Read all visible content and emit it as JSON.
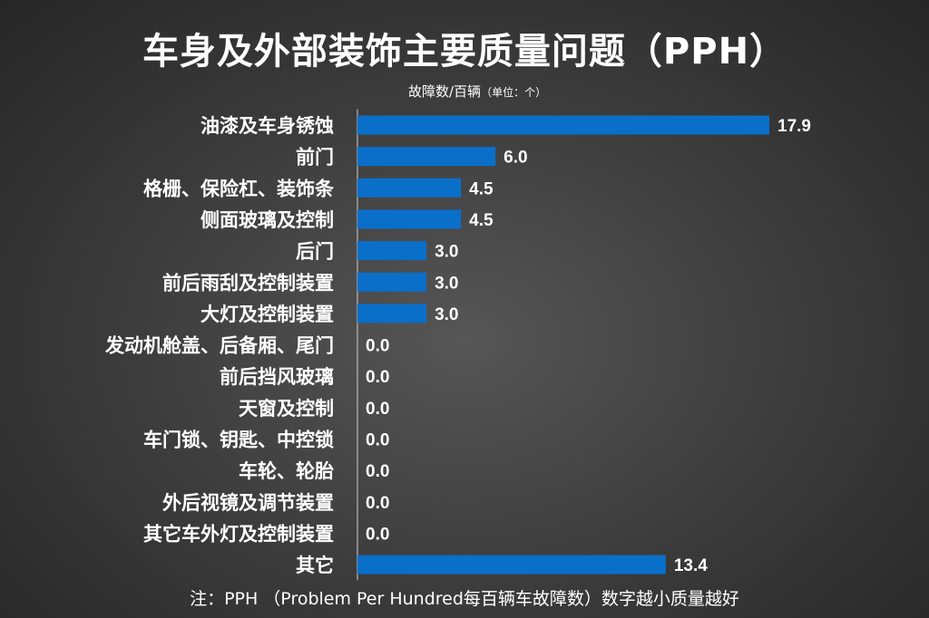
{
  "chart_data": {
    "type": "bar",
    "orientation": "horizontal",
    "title": "车身及外部装饰主要质量问题（PPH）",
    "unit_main": "故障数/百辆",
    "unit_paren": "（单位：个）",
    "categories": [
      "油漆及车身锈蚀",
      "前门",
      "格栅、保险杠、装饰条",
      "侧面玻璃及控制",
      "后门",
      "前后雨刮及控制装置",
      "大灯及控制装置",
      "发动机舱盖、后备厢、尾门",
      "前后挡风玻璃",
      "天窗及控制",
      "车门锁、钥匙、中控锁",
      "车轮、轮胎",
      "外后视镜及调节装置",
      "其它车外灯及控制装置",
      "其它"
    ],
    "values": [
      17.9,
      6.0,
      4.5,
      4.5,
      3.0,
      3.0,
      3.0,
      0.0,
      0.0,
      0.0,
      0.0,
      0.0,
      0.0,
      0.0,
      13.4
    ],
    "value_labels": [
      "17.9",
      "6.0",
      "4.5",
      "4.5",
      "3.0",
      "3.0",
      "3.0",
      "0.0",
      "0.0",
      "0.0",
      "0.0",
      "0.0",
      "0.0",
      "0.0",
      "13.4"
    ],
    "bar_color": "#0a6fc9",
    "xlim": [
      0,
      17.9
    ]
  },
  "footnote": "注：PPH （Problem Per Hundred每百辆车故障数）数字越小质量越好"
}
